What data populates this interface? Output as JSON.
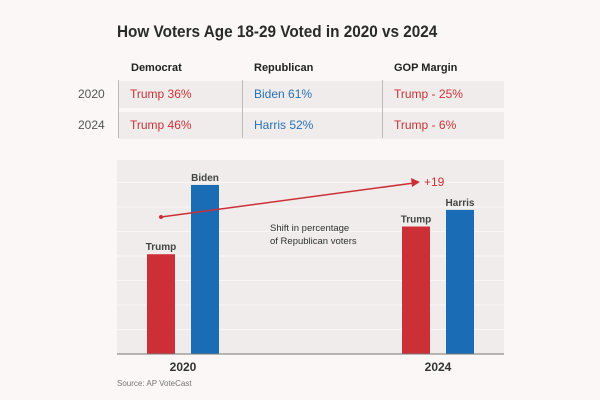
{
  "title": "How Voters Age 18-29 Voted in 2020 vs 2024",
  "table": {
    "headers": [
      "Democrat",
      "Republican",
      "GOP Margin"
    ],
    "rows": [
      {
        "year": "2020",
        "democrat": "Trump 36%",
        "republican": "Biden 61%",
        "margin": "Trump - 25%"
      },
      {
        "year": "2024",
        "democrat": "Trump 46%",
        "republican": "Harris 52%",
        "margin": "Trump - 6%"
      }
    ]
  },
  "colors": {
    "republican": "#cc3036",
    "democrat": "#1a6db5"
  },
  "chart_data": {
    "type": "bar",
    "categories": [
      "2020",
      "2024"
    ],
    "series": [
      {
        "name": "Trump",
        "values": [
          36,
          46
        ]
      },
      {
        "name": "Biden / Harris",
        "values": [
          61,
          52
        ]
      }
    ],
    "bar_labels": [
      [
        "Trump",
        "Biden"
      ],
      [
        "Trump",
        "Harris"
      ]
    ],
    "ylim": [
      0,
      70
    ],
    "grid": true,
    "annotation": {
      "label": "+19",
      "text": "Shift in percentage\nof Republican voters"
    },
    "source": "Source: AP VoteCast"
  }
}
